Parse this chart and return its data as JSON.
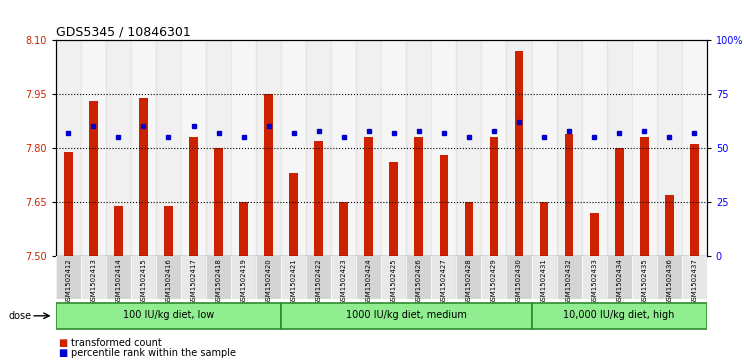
{
  "title": "GDS5345 / 10846301",
  "samples": [
    "GSM1502412",
    "GSM1502413",
    "GSM1502414",
    "GSM1502415",
    "GSM1502416",
    "GSM1502417",
    "GSM1502418",
    "GSM1502419",
    "GSM1502420",
    "GSM1502421",
    "GSM1502422",
    "GSM1502423",
    "GSM1502424",
    "GSM1502425",
    "GSM1502426",
    "GSM1502427",
    "GSM1502428",
    "GSM1502429",
    "GSM1502430",
    "GSM1502431",
    "GSM1502432",
    "GSM1502433",
    "GSM1502434",
    "GSM1502435",
    "GSM1502436",
    "GSM1502437"
  ],
  "bar_values": [
    7.79,
    7.93,
    7.64,
    7.94,
    7.64,
    7.83,
    7.8,
    7.65,
    7.95,
    7.73,
    7.82,
    7.65,
    7.83,
    7.76,
    7.83,
    7.78,
    7.65,
    7.83,
    8.07,
    7.65,
    7.84,
    7.62,
    7.8,
    7.83,
    7.67,
    7.81
  ],
  "percentile_values": [
    57,
    60,
    55,
    60,
    55,
    60,
    57,
    55,
    60,
    57,
    58,
    55,
    58,
    57,
    58,
    57,
    55,
    58,
    62,
    55,
    58,
    55,
    57,
    58,
    55,
    57
  ],
  "groups": [
    {
      "label": "100 IU/kg diet, low",
      "start": 0,
      "end": 9
    },
    {
      "label": "1000 IU/kg diet, medium",
      "start": 9,
      "end": 19
    },
    {
      "label": "10,000 IU/kg diet, high",
      "start": 19,
      "end": 26
    }
  ],
  "bar_color": "#cc2200",
  "dot_color": "#0000cc",
  "ylim_left": [
    7.5,
    8.1
  ],
  "ylim_right": [
    0,
    100
  ],
  "yticks_left": [
    7.5,
    7.65,
    7.8,
    7.95,
    8.1
  ],
  "yticks_right": [
    0,
    25,
    50,
    75,
    100
  ],
  "ytick_labels_right": [
    "0",
    "25",
    "50",
    "75",
    "100%"
  ],
  "hline_values": [
    7.65,
    7.8,
    7.95
  ],
  "group_fill": "#90ee90",
  "group_edge": "#2e8b2e",
  "col_shade_odd": "#d4d4d4",
  "col_shade_even": "#e8e8e8"
}
